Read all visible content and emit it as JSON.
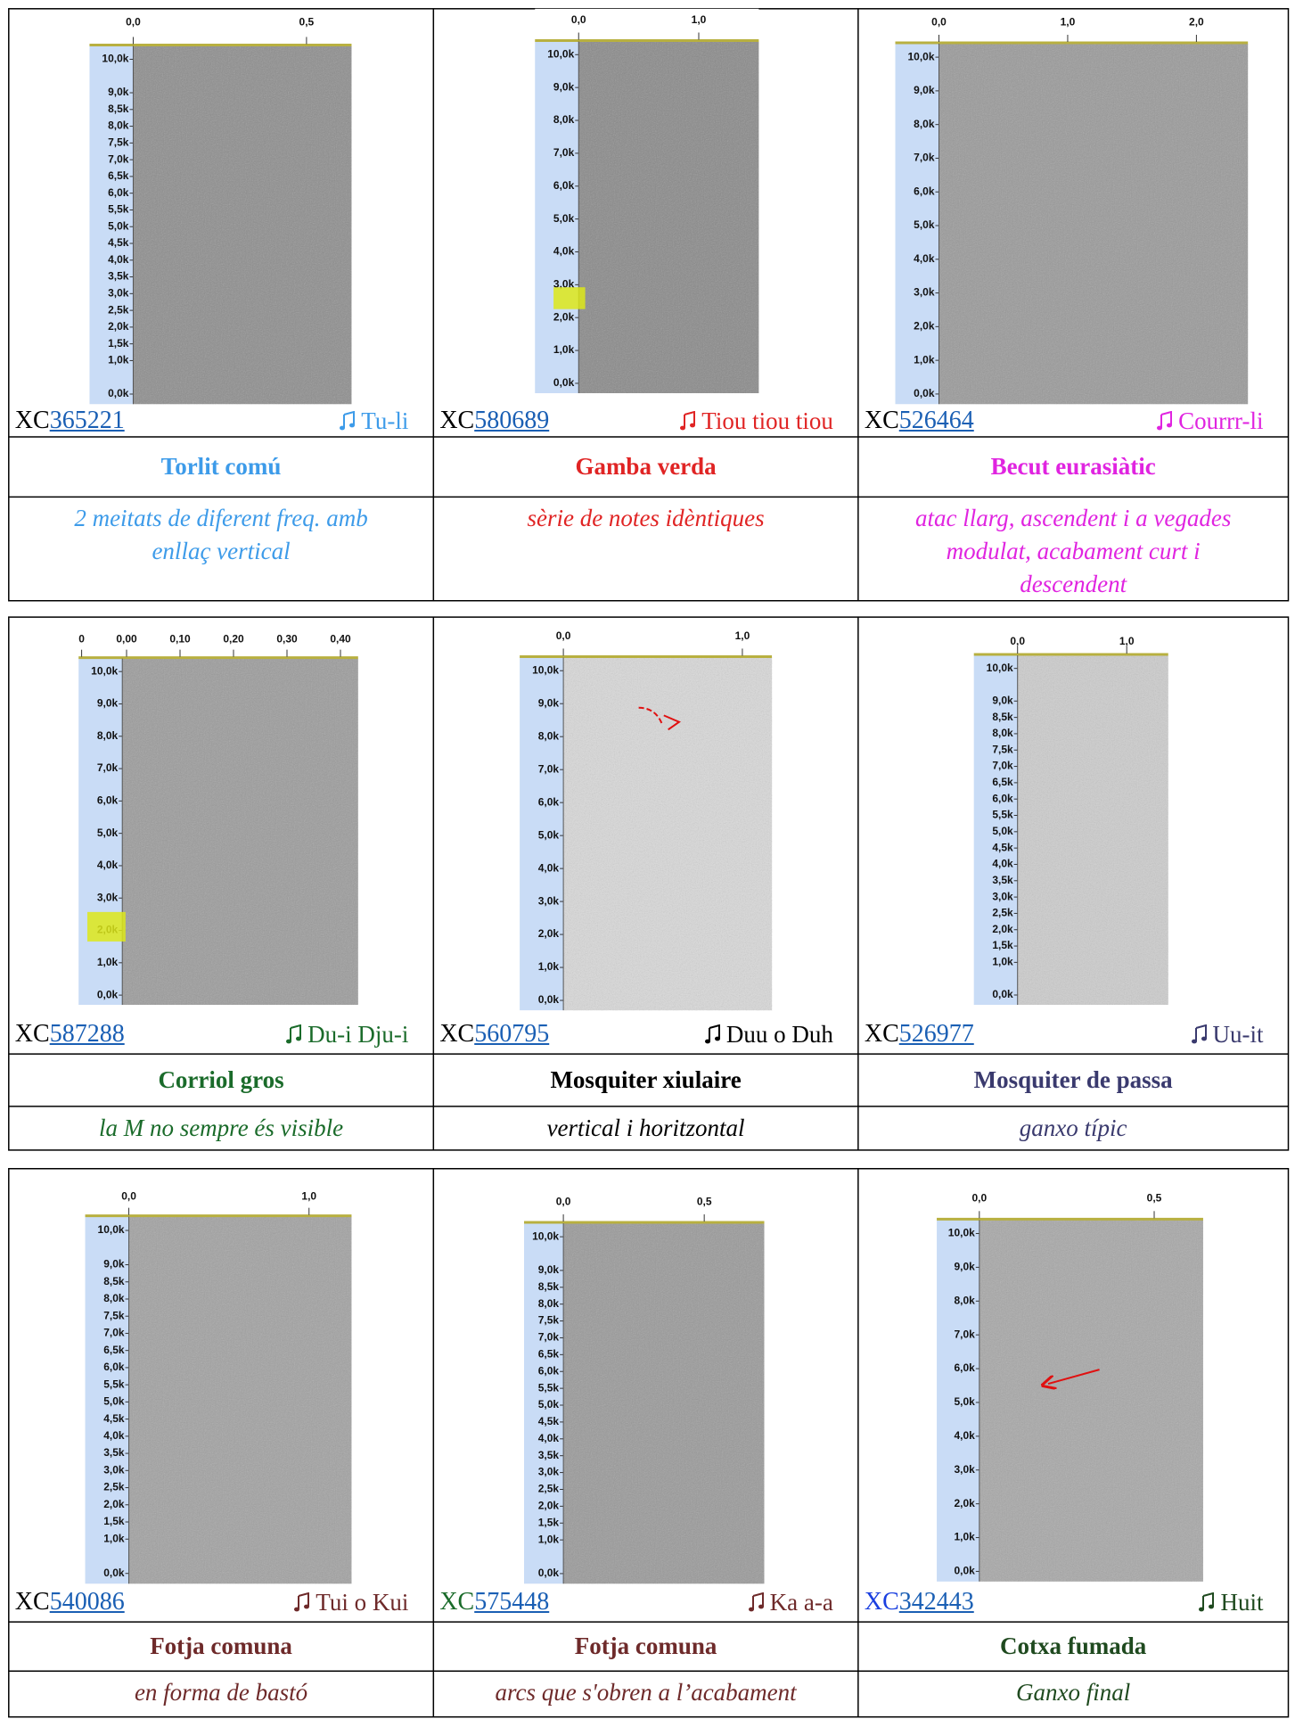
{
  "rows": [
    {
      "cells": [
        {
          "spectrogram": {
            "xlim": [
              0,
              0.63
            ],
            "xticks": [
              {
                "value": 0,
                "label": "0,0"
              },
              {
                "value": 0.5,
                "label": "0,5"
              }
            ],
            "ylim": [
              -0.3,
              10.4
            ],
            "yticks": [
              {
                "value": 10,
                "label": "10,0k"
              },
              {
                "value": 9,
                "label": "9,0k"
              },
              {
                "value": 8.5,
                "label": "8,5k"
              },
              {
                "value": 8,
                "label": "8,0k"
              },
              {
                "value": 7.5,
                "label": "7,5k"
              },
              {
                "value": 7,
                "label": "7,0k"
              },
              {
                "value": 6.5,
                "label": "6,5k"
              },
              {
                "value": 6,
                "label": "6,0k"
              },
              {
                "value": 5.5,
                "label": "5,5k"
              },
              {
                "value": 5,
                "label": "5,0k"
              },
              {
                "value": 4.5,
                "label": "4,5k"
              },
              {
                "value": 4,
                "label": "4,0k"
              },
              {
                "value": 3.5,
                "label": "3,5k"
              },
              {
                "value": 3,
                "label": "3,0k"
              },
              {
                "value": 2.5,
                "label": "2,5k"
              },
              {
                "value": 2,
                "label": "2,0k"
              },
              {
                "value": 1.5,
                "label": "1,5k"
              },
              {
                "value": 1,
                "label": "1,0k"
              },
              {
                "value": 0,
                "label": "0,0k"
              }
            ]
          },
          "xc_prefix": "XC",
          "xc_id": "365221",
          "song": "Tu-li",
          "name": "Torlit comú",
          "description": "2 meitats de diferent freq. amb enllaç vertical",
          "color": "#3d9be9",
          "xc_color": "#000000"
        },
        {
          "spectrogram": {
            "xlim": [
              0,
              1.5
            ],
            "xticks": [
              {
                "value": 0,
                "label": "0,0"
              },
              {
                "value": 1,
                "label": "1,0"
              }
            ],
            "ylim": [
              -0.3,
              10.4
            ],
            "yticks": [
              {
                "value": 10,
                "label": "10,0k"
              },
              {
                "value": 9,
                "label": "9,0k"
              },
              {
                "value": 8,
                "label": "8,0k"
              },
              {
                "value": 7,
                "label": "7,0k"
              },
              {
                "value": 6,
                "label": "6,0k"
              },
              {
                "value": 5,
                "label": "5,0k"
              },
              {
                "value": 4,
                "label": "4,0k"
              },
              {
                "value": 3,
                "label": "3,0k"
              },
              {
                "value": 2,
                "label": "2,0k"
              },
              {
                "value": 1,
                "label": "1,0k"
              },
              {
                "value": 0,
                "label": "0,0k"
              }
            ]
          },
          "xc_prefix": "XC",
          "xc_id": "580689",
          "song": "Tiou tiou tiou",
          "name": "Gamba verda",
          "description": "sèrie de notes idèntiques",
          "color": "#e02424",
          "xc_color": "#000000"
        },
        {
          "spectrogram": {
            "xlim": [
              0,
              2.4
            ],
            "xticks": [
              {
                "value": 0,
                "label": "0,0"
              },
              {
                "value": 1,
                "label": "1,0"
              },
              {
                "value": 2,
                "label": "2,0"
              }
            ],
            "ylim": [
              -0.3,
              10.4
            ],
            "yticks": [
              {
                "value": 10,
                "label": "10,0k"
              },
              {
                "value": 9,
                "label": "9,0k"
              },
              {
                "value": 8,
                "label": "8,0k"
              },
              {
                "value": 7,
                "label": "7,0k"
              },
              {
                "value": 6,
                "label": "6,0k"
              },
              {
                "value": 5,
                "label": "5,0k"
              },
              {
                "value": 4,
                "label": "4,0k"
              },
              {
                "value": 3,
                "label": "3,0k"
              },
              {
                "value": 2,
                "label": "2,0k"
              },
              {
                "value": 1,
                "label": "1,0k"
              },
              {
                "value": 0,
                "label": "0,0k"
              }
            ]
          },
          "xc_prefix": "XC",
          "xc_id": "526464",
          "song": "Courrr-li",
          "name": "Becut eurasiàtic",
          "description": "atac llarg, ascendent i a vegades modulat, acabament curt i descendent",
          "color": "#e024e0",
          "xc_color": "#000000"
        }
      ]
    },
    {
      "cells": [
        {
          "spectrogram": {
            "xlim": [
              -0.008,
              0.433
            ],
            "xticks": [
              {
                "value": -0.084,
                "label": "0"
              },
              {
                "value": 0,
                "label": "0,00"
              },
              {
                "value": 0.1,
                "label": "0,10"
              },
              {
                "value": 0.2,
                "label": "0,20"
              },
              {
                "value": 0.3,
                "label": "0,30"
              },
              {
                "value": 0.4,
                "label": "0,40"
              }
            ],
            "ylim": [
              -0.3,
              10.4
            ],
            "yticks": [
              {
                "value": 10,
                "label": "10,0k"
              },
              {
                "value": 9,
                "label": "9,0k"
              },
              {
                "value": 8,
                "label": "8,0k"
              },
              {
                "value": 7,
                "label": "7,0k"
              },
              {
                "value": 6,
                "label": "6,0k"
              },
              {
                "value": 5,
                "label": "5,0k"
              },
              {
                "value": 4,
                "label": "4,0k"
              },
              {
                "value": 3,
                "label": "3,0k"
              },
              {
                "value": 2,
                "label": "2,0k"
              },
              {
                "value": 1,
                "label": "1,0k"
              },
              {
                "value": 0,
                "label": "0,0k"
              }
            ]
          },
          "xc_prefix": "XC",
          "xc_id": "587288",
          "song": "Du-i Dju-i",
          "name": "Corriol gros",
          "description": "la M no sempre és visible",
          "color": "#1a6b2a",
          "xc_color": "#000000"
        },
        {
          "spectrogram": {
            "xlim": [
              0,
              1.165
            ],
            "xticks": [
              {
                "value": 0,
                "label": "0,0"
              },
              {
                "value": 1,
                "label": "1,0"
              }
            ],
            "ylim": [
              -0.3,
              10.4
            ],
            "yticks": [
              {
                "value": 10,
                "label": "10,0k"
              },
              {
                "value": 9,
                "label": "9,0k"
              },
              {
                "value": 8,
                "label": "8,0k"
              },
              {
                "value": 7,
                "label": "7,0k"
              },
              {
                "value": 6,
                "label": "6,0k"
              },
              {
                "value": 5,
                "label": "5,0k"
              },
              {
                "value": 4,
                "label": "4,0k"
              },
              {
                "value": 3,
                "label": "3,0k"
              },
              {
                "value": 2,
                "label": "2,0k"
              },
              {
                "value": 1,
                "label": "1,0k"
              },
              {
                "value": 0,
                "label": "0,0k"
              }
            ]
          },
          "xc_prefix": "XC",
          "xc_id": "560795",
          "song": "Duu o Duh",
          "name": "Mosquiter xiulaire",
          "description": "vertical i horitzontal",
          "color": "#000000",
          "xc_color": "#000000"
        },
        {
          "spectrogram": {
            "xlim": [
              0,
              1.38
            ],
            "xticks": [
              {
                "value": 0,
                "label": "0,0"
              },
              {
                "value": 1,
                "label": "1,0"
              }
            ],
            "ylim": [
              -0.3,
              10.4
            ],
            "yticks": [
              {
                "value": 10,
                "label": "10,0k"
              },
              {
                "value": 9,
                "label": "9,0k"
              },
              {
                "value": 8.5,
                "label": "8,5k"
              },
              {
                "value": 8,
                "label": "8,0k"
              },
              {
                "value": 7.5,
                "label": "7,5k"
              },
              {
                "value": 7,
                "label": "7,0k"
              },
              {
                "value": 6.5,
                "label": "6,5k"
              },
              {
                "value": 6,
                "label": "6,0k"
              },
              {
                "value": 5.5,
                "label": "5,5k"
              },
              {
                "value": 5,
                "label": "5,0k"
              },
              {
                "value": 4.5,
                "label": "4,5k"
              },
              {
                "value": 4,
                "label": "4,0k"
              },
              {
                "value": 3.5,
                "label": "3,5k"
              },
              {
                "value": 3,
                "label": "3,0k"
              },
              {
                "value": 2.5,
                "label": "2,5k"
              },
              {
                "value": 2,
                "label": "2,0k"
              },
              {
                "value": 1.5,
                "label": "1,5k"
              },
              {
                "value": 1,
                "label": "1,0k"
              },
              {
                "value": 0,
                "label": "0,0k"
              }
            ]
          },
          "xc_prefix": "XC",
          "xc_id": "526977",
          "song": "Uu-it",
          "name": "Mosquiter de passa",
          "description": "ganxo típic",
          "color": "#3a3a6e",
          "xc_color": "#000000"
        }
      ]
    },
    {
      "cells": [
        {
          "spectrogram": {
            "xlim": [
              0,
              1.236
            ],
            "xticks": [
              {
                "value": 0,
                "label": "0,0"
              },
              {
                "value": 1,
                "label": "1,0"
              }
            ],
            "ylim": [
              -0.3,
              10.4
            ],
            "yticks": [
              {
                "value": 10,
                "label": "10,0k"
              },
              {
                "value": 9,
                "label": "9,0k"
              },
              {
                "value": 8.5,
                "label": "8,5k"
              },
              {
                "value": 8,
                "label": "8,0k"
              },
              {
                "value": 7.5,
                "label": "7,5k"
              },
              {
                "value": 7,
                "label": "7,0k"
              },
              {
                "value": 6.5,
                "label": "6,5k"
              },
              {
                "value": 6,
                "label": "6,0k"
              },
              {
                "value": 5.5,
                "label": "5,5k"
              },
              {
                "value": 5,
                "label": "5,0k"
              },
              {
                "value": 4.5,
                "label": "4,5k"
              },
              {
                "value": 4,
                "label": "4,0k"
              },
              {
                "value": 3.5,
                "label": "3,5k"
              },
              {
                "value": 3,
                "label": "3,0k"
              },
              {
                "value": 2.5,
                "label": "2,5k"
              },
              {
                "value": 2,
                "label": "2,0k"
              },
              {
                "value": 1.5,
                "label": "1,5k"
              },
              {
                "value": 1,
                "label": "1,0k"
              },
              {
                "value": 0,
                "label": "0,0k"
              }
            ]
          },
          "xc_prefix": "XC",
          "xc_id": "540086",
          "song": "Tui o Kui",
          "name": "Fotja comuna",
          "description": "en forma de bastó",
          "color": "#6e2a2a",
          "xc_color": "#000000"
        },
        {
          "spectrogram": {
            "xlim": [
              0,
              0.713
            ],
            "xticks": [
              {
                "value": 0,
                "label": "0,0"
              },
              {
                "value": 0.5,
                "label": "0,5"
              }
            ],
            "ylim": [
              -0.3,
              10.4
            ],
            "yticks": [
              {
                "value": 10,
                "label": "10,0k"
              },
              {
                "value": 9,
                "label": "9,0k"
              },
              {
                "value": 8.5,
                "label": "8,5k"
              },
              {
                "value": 8,
                "label": "8,0k"
              },
              {
                "value": 7.5,
                "label": "7,5k"
              },
              {
                "value": 7,
                "label": "7,0k"
              },
              {
                "value": 6.5,
                "label": "6,5k"
              },
              {
                "value": 6,
                "label": "6,0k"
              },
              {
                "value": 5.5,
                "label": "5,5k"
              },
              {
                "value": 5,
                "label": "5,0k"
              },
              {
                "value": 4.5,
                "label": "4,5k"
              },
              {
                "value": 4,
                "label": "4,0k"
              },
              {
                "value": 3.5,
                "label": "3,5k"
              },
              {
                "value": 3,
                "label": "3,0k"
              },
              {
                "value": 2.5,
                "label": "2,5k"
              },
              {
                "value": 2,
                "label": "2,0k"
              },
              {
                "value": 1.5,
                "label": "1,5k"
              },
              {
                "value": 1,
                "label": "1,0k"
              },
              {
                "value": 0,
                "label": "0,0k"
              }
            ]
          },
          "xc_prefix": "XC",
          "xc_id": "575448",
          "song": "Ka a-a",
          "name": "Fotja comuna",
          "description": "arcs que s'obren a l’acabament",
          "color": "#6e2a2a",
          "xc_color": "#1a6b2a"
        },
        {
          "spectrogram": {
            "xlim": [
              0,
              0.64
            ],
            "xticks": [
              {
                "value": 0,
                "label": "0,0"
              },
              {
                "value": 0.5,
                "label": "0,5"
              }
            ],
            "ylim": [
              -0.3,
              10.4
            ],
            "yticks": [
              {
                "value": 10,
                "label": "10,0k"
              },
              {
                "value": 9,
                "label": "9,0k"
              },
              {
                "value": 8,
                "label": "8,0k"
              },
              {
                "value": 7,
                "label": "7,0k"
              },
              {
                "value": 6,
                "label": "6,0k"
              },
              {
                "value": 5,
                "label": "5,0k"
              },
              {
                "value": 4,
                "label": "4,0k"
              },
              {
                "value": 3,
                "label": "3,0k"
              },
              {
                "value": 2,
                "label": "2,0k"
              },
              {
                "value": 1,
                "label": "1,0k"
              },
              {
                "value": 0,
                "label": "0,0k"
              }
            ]
          },
          "xc_prefix": "XC",
          "xc_id": "342443",
          "song": "Huit",
          "name": "Cotxa fumada",
          "description": "Ganxo final",
          "color": "#1f4a1f",
          "xc_color": "#1a3fe0"
        }
      ]
    }
  ]
}
